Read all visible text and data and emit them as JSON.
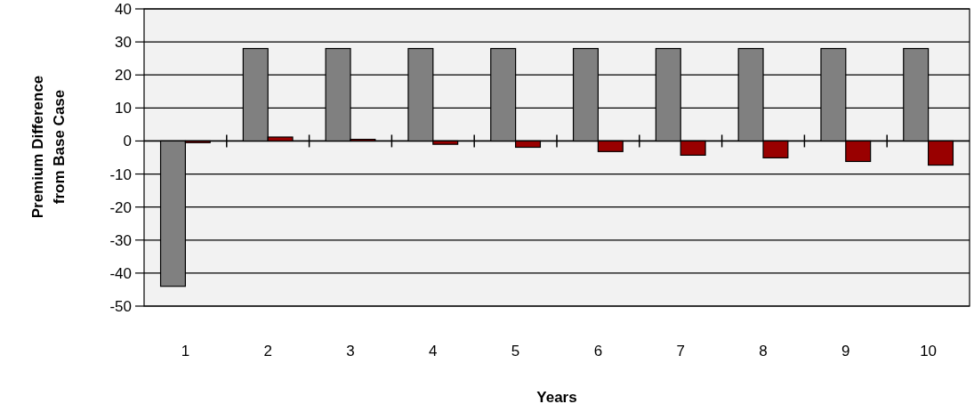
{
  "chart_data": {
    "type": "bar",
    "xlabel": "Years",
    "ylabel": "Premium Difference\nfrom Base Case",
    "categories": [
      "1",
      "2",
      "3",
      "4",
      "5",
      "6",
      "7",
      "8",
      "9",
      "10"
    ],
    "series": [
      {
        "color": "#808080",
        "values": [
          -44,
          28,
          28,
          28,
          28,
          28,
          28,
          28,
          28,
          28
        ]
      },
      {
        "color": "#990000",
        "values": [
          -0.5,
          1.2,
          0.5,
          -1,
          -1.9,
          -3.2,
          -4.3,
          -5.1,
          -6.2,
          -7.3
        ]
      }
    ],
    "ylim": [
      -50,
      40
    ],
    "yticks": [
      -50,
      -40,
      -30,
      -20,
      -10,
      0,
      10,
      20,
      30,
      40
    ],
    "grid": "y"
  }
}
